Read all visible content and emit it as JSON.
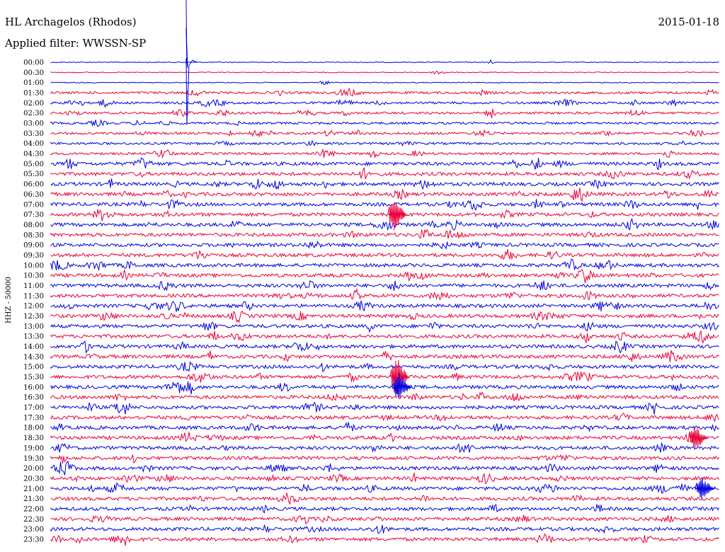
{
  "header": {
    "station": "HL Archagelos (Rhodos)",
    "filter": "Applied filter: WWSSN-SP",
    "date": "2015-01-18"
  },
  "chart_data": {
    "type": "line",
    "ylabel": "HHZ - 50000",
    "colors": [
      "#0000e0",
      "#e8003a"
    ],
    "x_range_minutes": [
      0,
      30
    ],
    "rows": [
      "00:00",
      "00:30",
      "01:00",
      "01:30",
      "02:00",
      "02:30",
      "03:00",
      "03:30",
      "04:00",
      "04:30",
      "05:00",
      "05:30",
      "06:00",
      "06:30",
      "07:00",
      "07:30",
      "08:00",
      "08:30",
      "09:00",
      "09:30",
      "10:00",
      "10:30",
      "11:00",
      "11:30",
      "12:00",
      "12:30",
      "13:00",
      "13:30",
      "14:00",
      "14:30",
      "15:00",
      "15:30",
      "16:00",
      "16:30",
      "17:00",
      "17:30",
      "18:00",
      "18:30",
      "19:00",
      "19:30",
      "20:00",
      "20:30",
      "21:00",
      "21:30",
      "22:00",
      "22:30",
      "23:00",
      "23:30"
    ],
    "events": [
      {
        "row": 0,
        "minute": 6.1,
        "amplitude": 1.0
      },
      {
        "row": 15,
        "minute": 15.5,
        "amplitude": 0.6
      },
      {
        "row": 31,
        "minute": 15.6,
        "amplitude": 0.7
      },
      {
        "row": 32,
        "minute": 15.7,
        "amplitude": 0.5
      },
      {
        "row": 37,
        "minute": 29.0,
        "amplitude": 0.45
      },
      {
        "row": 42,
        "minute": 29.3,
        "amplitude": 0.4
      }
    ]
  }
}
